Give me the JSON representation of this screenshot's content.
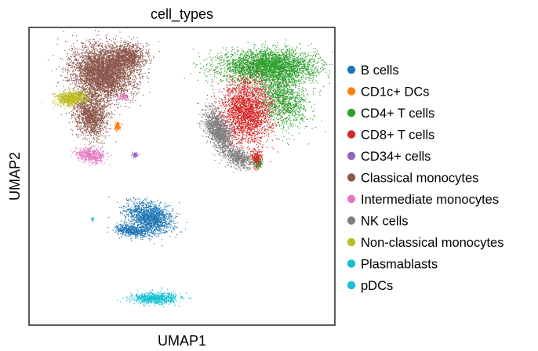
{
  "chart_data": {
    "type": "scatter",
    "title": "cell_types",
    "xlabel": "UMAP1",
    "ylabel": "UMAP2",
    "grid": false,
    "ticks": false,
    "legend_placement": "right",
    "series": [
      {
        "name": "B cells",
        "color": "#1f77b4",
        "clusters": [
          {
            "cx": 4.2,
            "cy": -2.8,
            "rx": 1.3,
            "ry": 0.9,
            "n": 1500,
            "angle": -25
          },
          {
            "cx": 3.2,
            "cy": -3.6,
            "rx": 0.9,
            "ry": 0.35,
            "n": 500,
            "angle": -10
          }
        ]
      },
      {
        "name": "CD1c+ DCs",
        "color": "#ff7f0e",
        "clusters": [
          {
            "cx": 2.4,
            "cy": 2.9,
            "rx": 0.18,
            "ry": 0.25,
            "n": 120,
            "angle": 0
          }
        ]
      },
      {
        "name": "CD4+ T cells",
        "color": "#2ca02c",
        "clusters": [
          {
            "cx": 10.8,
            "cy": 6.6,
            "rx": 2.6,
            "ry": 1.0,
            "n": 3200,
            "angle": 0
          },
          {
            "cx": 11.6,
            "cy": 4.6,
            "rx": 1.3,
            "ry": 1.8,
            "n": 1200,
            "angle": 15
          },
          {
            "cx": 10.2,
            "cy": 0.6,
            "rx": 0.25,
            "ry": 0.35,
            "n": 150,
            "angle": 0
          }
        ]
      },
      {
        "name": "CD8+ T cells",
        "color": "#d62728",
        "clusters": [
          {
            "cx": 9.6,
            "cy": 3.8,
            "rx": 1.4,
            "ry": 2.0,
            "n": 2400,
            "angle": 0
          },
          {
            "cx": 10.1,
            "cy": 0.9,
            "rx": 0.3,
            "ry": 0.5,
            "n": 180,
            "angle": 0
          }
        ]
      },
      {
        "name": "CD34+ cells",
        "color": "#9467bd",
        "clusters": [
          {
            "cx": 3.4,
            "cy": 1.1,
            "rx": 0.15,
            "ry": 0.15,
            "n": 60,
            "angle": 0
          }
        ]
      },
      {
        "name": "Classical monocytes",
        "color": "#8c564b",
        "clusters": [
          {
            "cx": 1.6,
            "cy": 6.2,
            "rx": 1.7,
            "ry": 1.6,
            "n": 4200,
            "angle": -20
          },
          {
            "cx": 0.9,
            "cy": 3.6,
            "rx": 0.9,
            "ry": 1.4,
            "n": 1400,
            "angle": 10
          },
          {
            "cx": 3.0,
            "cy": 7.2,
            "rx": 1.0,
            "ry": 0.8,
            "n": 900,
            "angle": 0
          }
        ]
      },
      {
        "name": "Intermediate monocytes",
        "color": "#e377c2",
        "clusters": [
          {
            "cx": 0.9,
            "cy": 1.1,
            "rx": 0.8,
            "ry": 0.45,
            "n": 500,
            "angle": -10
          },
          {
            "cx": 2.7,
            "cy": 4.7,
            "rx": 0.25,
            "ry": 0.2,
            "n": 80,
            "angle": 0
          }
        ]
      },
      {
        "name": "NK cells",
        "color": "#7f7f7f",
        "clusters": [
          {
            "cx": 8.0,
            "cy": 2.6,
            "rx": 0.6,
            "ry": 1.5,
            "n": 1300,
            "angle": 20
          },
          {
            "cx": 9.1,
            "cy": 0.9,
            "rx": 0.8,
            "ry": 0.5,
            "n": 500,
            "angle": -35
          }
        ]
      },
      {
        "name": "Non-classical monocytes",
        "color": "#bcbd22",
        "clusters": [
          {
            "cx": -0.2,
            "cy": 4.6,
            "rx": 0.8,
            "ry": 0.45,
            "n": 700,
            "angle": 5
          }
        ]
      },
      {
        "name": "Plasmablasts",
        "color": "#17becf",
        "clusters": [
          {
            "cx": 1.0,
            "cy": -2.9,
            "rx": 0.08,
            "ry": 0.15,
            "n": 15,
            "angle": 0
          }
        ]
      },
      {
        "name": "pDCs",
        "color": "#17c0d2",
        "clusters": [
          {
            "cx": 4.5,
            "cy": -7.8,
            "rx": 1.3,
            "ry": 0.35,
            "n": 700,
            "angle": 0
          }
        ]
      }
    ],
    "xlim": [
      -2.5,
      14.5
    ],
    "ylim": [
      -9.5,
      9.0
    ]
  }
}
